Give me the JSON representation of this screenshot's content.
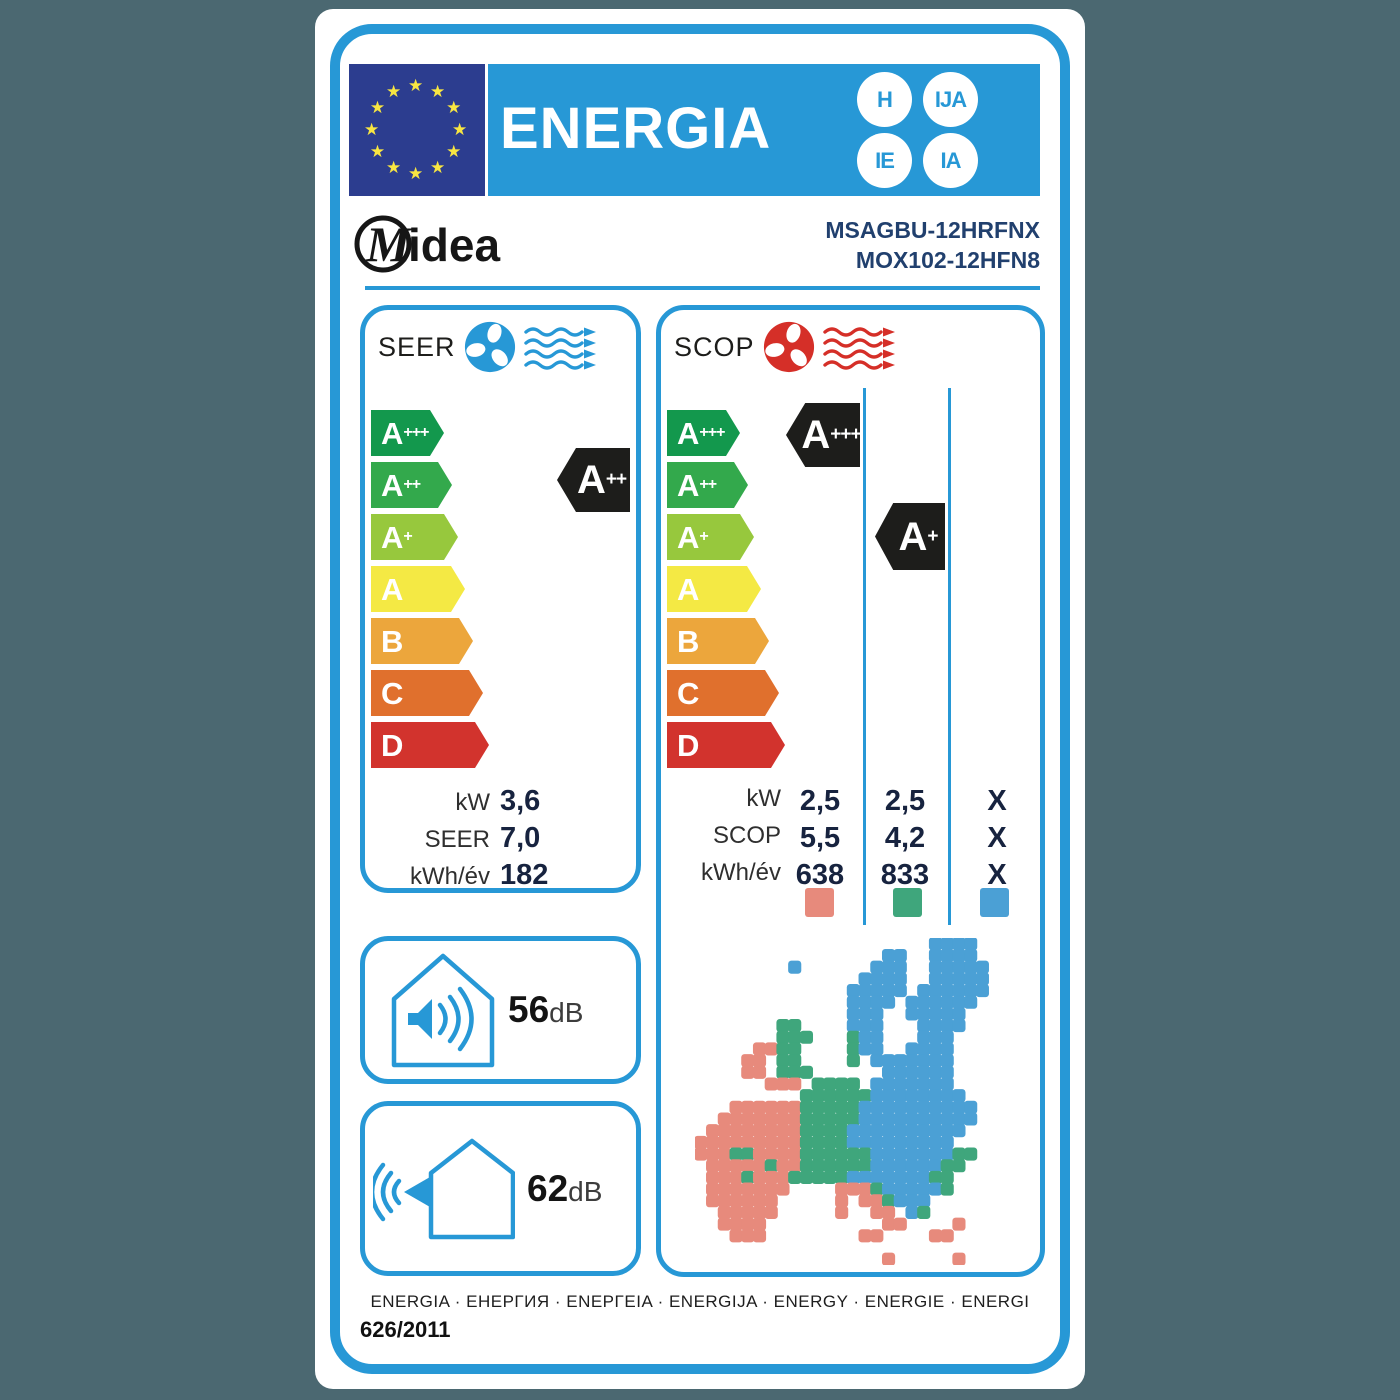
{
  "header": {
    "title": "ENERGIA",
    "badges": [
      "H",
      "IJA",
      "IE",
      "IA"
    ],
    "brand": "Midea",
    "models": [
      "MSAGBU-12HRFNX",
      "MOX102-12HFN8"
    ]
  },
  "scale": [
    {
      "letter": "A",
      "sup": "+++",
      "color": "#13984d"
    },
    {
      "letter": "A",
      "sup": "++",
      "color": "#33a94c"
    },
    {
      "letter": "A",
      "sup": "+",
      "color": "#97c83d"
    },
    {
      "letter": "A",
      "sup": "",
      "color": "#f4e944"
    },
    {
      "letter": "B",
      "sup": "",
      "color": "#eca63c"
    },
    {
      "letter": "C",
      "sup": "",
      "color": "#e0702d"
    },
    {
      "letter": "D",
      "sup": "",
      "color": "#d2332d"
    }
  ],
  "seer": {
    "label": "SEER",
    "rating": {
      "letter": "A",
      "sup": "++"
    },
    "rows": [
      {
        "label": "kW",
        "value": "3,6"
      },
      {
        "label": "SEER",
        "value": "7,0"
      },
      {
        "label": "kWh/év",
        "value": "182"
      }
    ]
  },
  "scop": {
    "label": "SCOP",
    "ratings": [
      {
        "letter": "A",
        "sup": "+++"
      },
      {
        "letter": "A",
        "sup": "+"
      }
    ],
    "rows": [
      {
        "label": "kW",
        "values": [
          "2,5",
          "2,5",
          "X"
        ]
      },
      {
        "label": "SCOP",
        "values": [
          "5,5",
          "4,2",
          "X"
        ]
      },
      {
        "label": "kWh/év",
        "values": [
          "638",
          "833",
          "X"
        ]
      }
    ],
    "zones": {
      "warm": "#e78a7c",
      "average": "#3fa67c",
      "cold": "#4ba0d5"
    }
  },
  "noise": [
    {
      "value": "56",
      "unit": "dB"
    },
    {
      "value": "62",
      "unit": "dB"
    }
  ],
  "footer": {
    "languages": "ENERGIA · ЕНЕРГИЯ · ΕΝΕΡΓΕΙΑ · ENERGIJA · ENERGY · ENERGIE · ENERGI",
    "regulation": "626/2011"
  },
  "colors": {
    "accent": "#2798d6",
    "eu_navy": "#2c3d8f",
    "star": "#f8e642",
    "pointer_black": "#1d1d1b",
    "model_text": "#21406e",
    "fan_red": "#d52f28",
    "background": "#4b6871"
  },
  "map_grid": [
    "....................BBBB..",
    "................BB..BBBB..",
    "........B......BBB..BBBBB.",
    "..............BBBB..BBBBB.",
    ".............BBBBB.BBBBBB.",
    ".............BBBB.BBBBBB..",
    ".............BBB..BBBBB...",
    ".......GG....BBB...BBBB...",
    ".......GGG...GBB...BBB....",
    ".....RRGG....GBB..BBBB....",
    "....RR.GG....G.BBBBBBB....",
    "....RR.GGG......BBBBBB....",
    "......RRR.GGGG.BBBBBBB....",
    ".........GGGGGGBBBBBBBB...",
    "...RRRRRRGGGGGBBBBBBBBBB..",
    "..RRRRRRRGGGGGBBBBBBBBBB..",
    ".RRRRRRRRGGGGBBBBBBBBBB...",
    "RRRRRRRRRGGGGBBBBBBBBB....",
    "RRRGGRRRRGGGGGGBBBBBBBGG..",
    ".RRRRRGRRGGGGGGBBBBBBGG...",
    ".RRRGRRRGGGGGBBBBBBBGG....",
    ".RRRRRRR....RRRGBBBBBG....",
    ".RRRRRR.....R.RRGBBB......",
    "..RRRRR.....R..RR.BG......",
    "..RRRR..........RR....R...",
    "...RRR........RR....RR....",
    "..........................",
    "................R.....R..."
  ]
}
